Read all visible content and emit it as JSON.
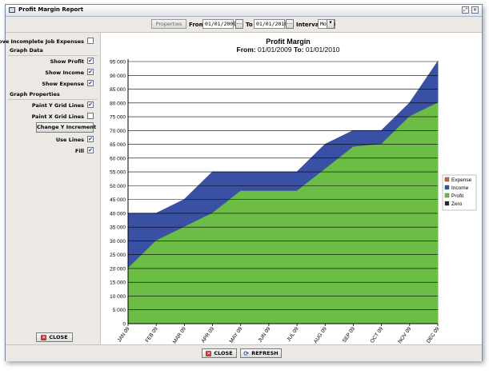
{
  "window": {
    "title": "Profit Margin Report"
  },
  "toolbar": {
    "properties_label": "Properties",
    "from_label": "From",
    "from_value": "01/01/2009",
    "to_label": "To",
    "to_value": "01/01/2010",
    "interval_label": "Interval",
    "interval_value": "Month",
    "date_button_glyph": "...",
    "dropdown_glyph": "▾"
  },
  "sidebar": {
    "remove_incomplete_label": "Remove Incomplete Job Expenses",
    "remove_incomplete_checked": false,
    "graph_data_title": "Graph Data",
    "show_profit_label": "Show Profit",
    "show_income_label": "Show Income",
    "show_expense_label": "Show Expense",
    "graph_properties_title": "Graph Properties",
    "paint_y_label": "Paint Y Grid Lines",
    "paint_x_label": "Paint X Grid Lines",
    "change_y_label": "Change Y Increment",
    "use_lines_label": "Use Lines",
    "fill_label": "Fill",
    "close_label": "CLOSE",
    "check_glyph": "✔"
  },
  "bottom": {
    "close_label": "CLOSE",
    "refresh_label": "REFRESH"
  },
  "colors": {
    "profit": "#6cbd45",
    "income": "#3950a4",
    "expense": "#c0694a",
    "zero": "#222222"
  },
  "chart_data": {
    "type": "area",
    "title": "Profit Margin",
    "subtitle_from_label": "From:",
    "subtitle_from": "01/01/2009",
    "subtitle_to_label": "To:",
    "subtitle_to": "01/01/2010",
    "categories": [
      "JAN 09",
      "FEB 09",
      "MAR 09",
      "APR 09",
      "MAY 09",
      "JUN 09",
      "JUL 09",
      "AUG 09",
      "SEP 09",
      "OCT 09",
      "NOV 09",
      "DEC 09"
    ],
    "ylim": [
      0,
      95000
    ],
    "y_ticks": [
      "0",
      "5 000",
      "10 000",
      "15 000",
      "20 000",
      "25 000",
      "30 000",
      "35 000",
      "40 000",
      "45 000",
      "50 000",
      "55 000",
      "60 000",
      "65 000",
      "70 000",
      "75 000",
      "80 000",
      "85 000",
      "90 000",
      "95 000"
    ],
    "y_grid": true,
    "x_grid": false,
    "legend_position": "right",
    "series": [
      {
        "name": "Expense",
        "values": [
          0,
          0,
          0,
          0,
          0,
          0,
          0,
          0,
          0,
          0,
          0,
          0
        ]
      },
      {
        "name": "Income",
        "values": [
          40000,
          40000,
          45000,
          55000,
          55000,
          55000,
          55000,
          65000,
          70000,
          70000,
          80000,
          95000
        ]
      },
      {
        "name": "Profit",
        "values": [
          20000,
          30000,
          35000,
          40000,
          48000,
          48000,
          48000,
          56000,
          64000,
          65000,
          75000,
          80000
        ]
      },
      {
        "name": "Zero",
        "values": [
          0,
          0,
          0,
          0,
          0,
          0,
          0,
          0,
          0,
          0,
          0,
          0
        ]
      }
    ]
  }
}
